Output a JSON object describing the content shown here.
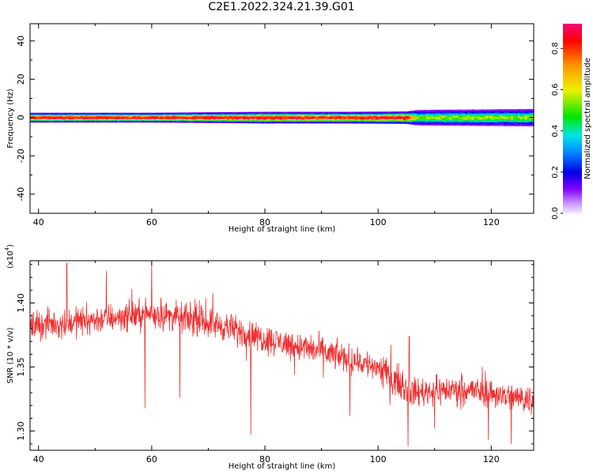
{
  "title": "C2E1.2022.324.21.39.G01",
  "chart_data": [
    {
      "type": "heatmap",
      "xlabel": "Height of straight line (km)",
      "ylabel": "Frequency (Hz)",
      "xlim": [
        38.5,
        127.5
      ],
      "ylim": [
        -50,
        49
      ],
      "xticks": [
        40,
        60,
        80,
        100,
        120
      ],
      "yticks": [
        -40,
        -20,
        0,
        20,
        40
      ],
      "band": [
        {
          "x": 39,
          "halfwidth": 2.5,
          "center_amp": 0.85
        },
        {
          "x": 60,
          "halfwidth": 2.5,
          "center_amp": 0.85
        },
        {
          "x": 80,
          "halfwidth": 3.0,
          "center_amp": 0.85
        },
        {
          "x": 95,
          "halfwidth": 3.0,
          "center_amp": 0.8
        },
        {
          "x": 105,
          "halfwidth": 3.2,
          "center_amp": 0.85
        },
        {
          "x": 107,
          "halfwidth": 4.0,
          "center_amp": 0.5
        },
        {
          "x": 127.5,
          "halfwidth": 4.5,
          "center_amp": 0.5
        }
      ],
      "colorbar": {
        "label": "Normalized spectral amplitude",
        "range": [
          0,
          0.92
        ],
        "ticks": [
          0.0,
          0.2,
          0.4,
          0.6,
          0.8
        ]
      }
    },
    {
      "type": "line",
      "xlabel": "Height of straight line (km)",
      "ylabel": "SNR (10 * v/v)",
      "ymultiplier": "(x10",
      "ymultiplier_exp": "4",
      "ymultiplier_close": ")",
      "xlim": [
        38.5,
        127.5
      ],
      "ylim": [
        1.285,
        1.433
      ],
      "xticks": [
        40,
        60,
        80,
        100,
        120
      ],
      "yticks": [
        1.3,
        1.35,
        1.4
      ],
      "ytick_labels": [
        "1.30",
        "1.35",
        "1.40"
      ],
      "color": "#ee3030",
      "trend": [
        {
          "x": 38.5,
          "y": 1.382
        },
        {
          "x": 50,
          "y": 1.387
        },
        {
          "x": 60,
          "y": 1.392
        },
        {
          "x": 70,
          "y": 1.385
        },
        {
          "x": 80,
          "y": 1.372
        },
        {
          "x": 90,
          "y": 1.362
        },
        {
          "x": 100,
          "y": 1.35
        },
        {
          "x": 106,
          "y": 1.33
        },
        {
          "x": 115,
          "y": 1.333
        },
        {
          "x": 127.5,
          "y": 1.324
        }
      ],
      "noise_amplitude": 0.007,
      "spikes": [
        {
          "x": 45,
          "y": 1.431
        },
        {
          "x": 52,
          "y": 1.425
        },
        {
          "x": 60,
          "y": 1.434
        },
        {
          "x": 58.8,
          "y": 1.318
        },
        {
          "x": 65,
          "y": 1.326
        },
        {
          "x": 77.5,
          "y": 1.297
        },
        {
          "x": 95,
          "y": 1.312
        },
        {
          "x": 105.3,
          "y": 1.288
        },
        {
          "x": 105.5,
          "y": 1.374
        },
        {
          "x": 110,
          "y": 1.302
        },
        {
          "x": 119.5,
          "y": 1.293
        },
        {
          "x": 123.5,
          "y": 1.29
        }
      ]
    }
  ]
}
